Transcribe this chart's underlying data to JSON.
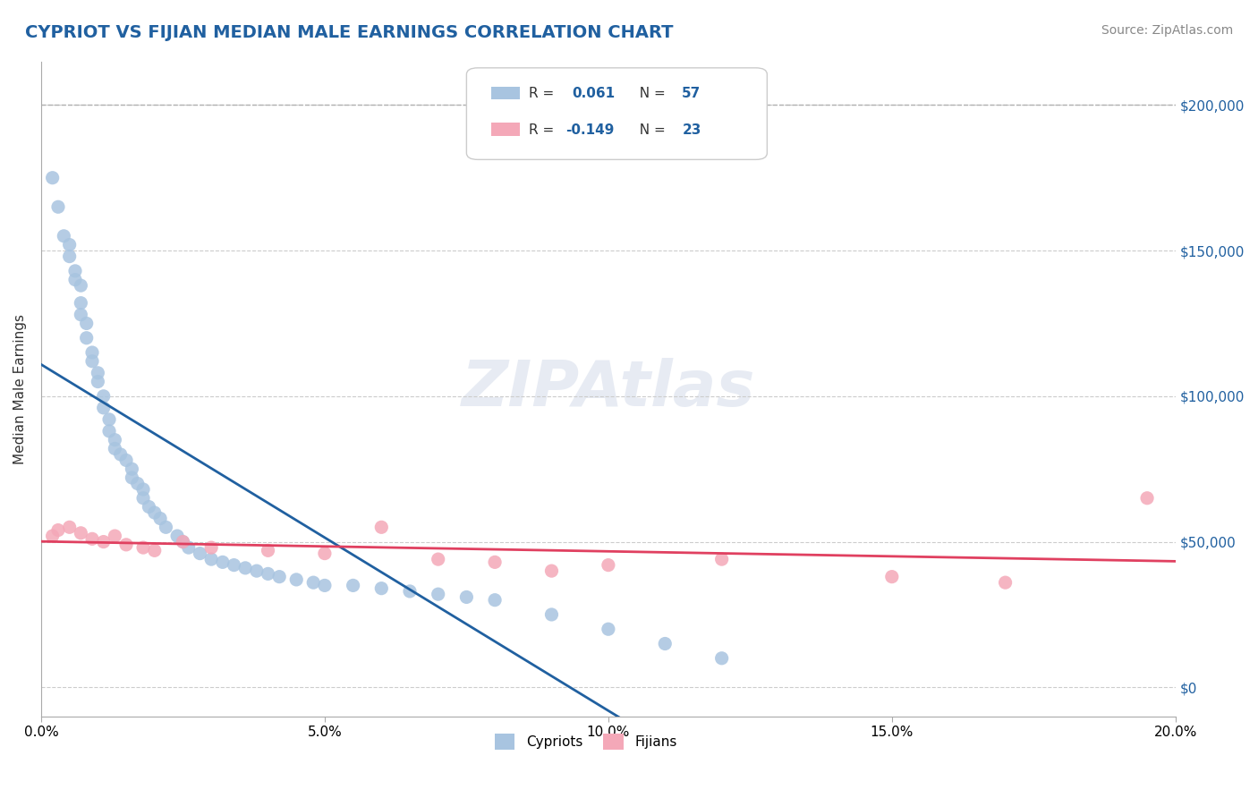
{
  "title": "CYPRIOT VS FIJIAN MEDIAN MALE EARNINGS CORRELATION CHART",
  "source": "Source: ZipAtlas.com",
  "xlabel": "",
  "ylabel": "Median Male Earnings",
  "xlim": [
    0.0,
    0.2
  ],
  "ylim": [
    -10000,
    215000
  ],
  "xticks": [
    0.0,
    0.05,
    0.1,
    0.15,
    0.2
  ],
  "xtick_labels": [
    "0.0%",
    "5.0%",
    "10.0%",
    "15.0%",
    "20.0%"
  ],
  "yticks": [
    0,
    50000,
    100000,
    150000,
    200000
  ],
  "ytick_labels": [
    "$0",
    "$50,000",
    "$100,000",
    "$150,000",
    "$200,000"
  ],
  "legend_r1": "R =  0.061",
  "legend_n1": "N = 57",
  "legend_r2": "R = -0.149",
  "legend_n2": "N = 23",
  "cypriot_color": "#a8c4e0",
  "fijian_color": "#f4a8b8",
  "blue_line_color": "#2060a0",
  "pink_line_color": "#e04060",
  "dashed_line_color": "#b0b0b0",
  "title_color": "#2060a0",
  "watermark_color": "#d0d8e8",
  "background_color": "#ffffff",
  "cypriot_x": [
    0.002,
    0.003,
    0.004,
    0.005,
    0.005,
    0.006,
    0.006,
    0.007,
    0.007,
    0.007,
    0.008,
    0.008,
    0.009,
    0.009,
    0.01,
    0.01,
    0.011,
    0.011,
    0.012,
    0.012,
    0.013,
    0.013,
    0.014,
    0.015,
    0.016,
    0.016,
    0.017,
    0.018,
    0.018,
    0.019,
    0.02,
    0.021,
    0.022,
    0.024,
    0.025,
    0.026,
    0.028,
    0.03,
    0.032,
    0.034,
    0.036,
    0.038,
    0.04,
    0.042,
    0.045,
    0.048,
    0.05,
    0.055,
    0.06,
    0.065,
    0.07,
    0.075,
    0.08,
    0.09,
    0.1,
    0.11,
    0.12
  ],
  "cypriot_y": [
    175000,
    165000,
    155000,
    152000,
    148000,
    143000,
    140000,
    138000,
    132000,
    128000,
    125000,
    120000,
    115000,
    112000,
    108000,
    105000,
    100000,
    96000,
    92000,
    88000,
    85000,
    82000,
    80000,
    78000,
    75000,
    72000,
    70000,
    68000,
    65000,
    62000,
    60000,
    58000,
    55000,
    52000,
    50000,
    48000,
    46000,
    44000,
    43000,
    42000,
    41000,
    40000,
    39000,
    38000,
    37000,
    36000,
    35000,
    35000,
    34000,
    33000,
    32000,
    31000,
    30000,
    25000,
    20000,
    15000,
    10000
  ],
  "fijian_x": [
    0.002,
    0.003,
    0.005,
    0.007,
    0.009,
    0.011,
    0.013,
    0.015,
    0.018,
    0.02,
    0.025,
    0.03,
    0.04,
    0.05,
    0.06,
    0.07,
    0.08,
    0.09,
    0.1,
    0.12,
    0.15,
    0.17,
    0.195
  ],
  "fijian_y": [
    52000,
    54000,
    55000,
    53000,
    51000,
    50000,
    52000,
    49000,
    48000,
    47000,
    50000,
    48000,
    47000,
    46000,
    55000,
    44000,
    43000,
    40000,
    42000,
    44000,
    38000,
    36000,
    65000
  ]
}
